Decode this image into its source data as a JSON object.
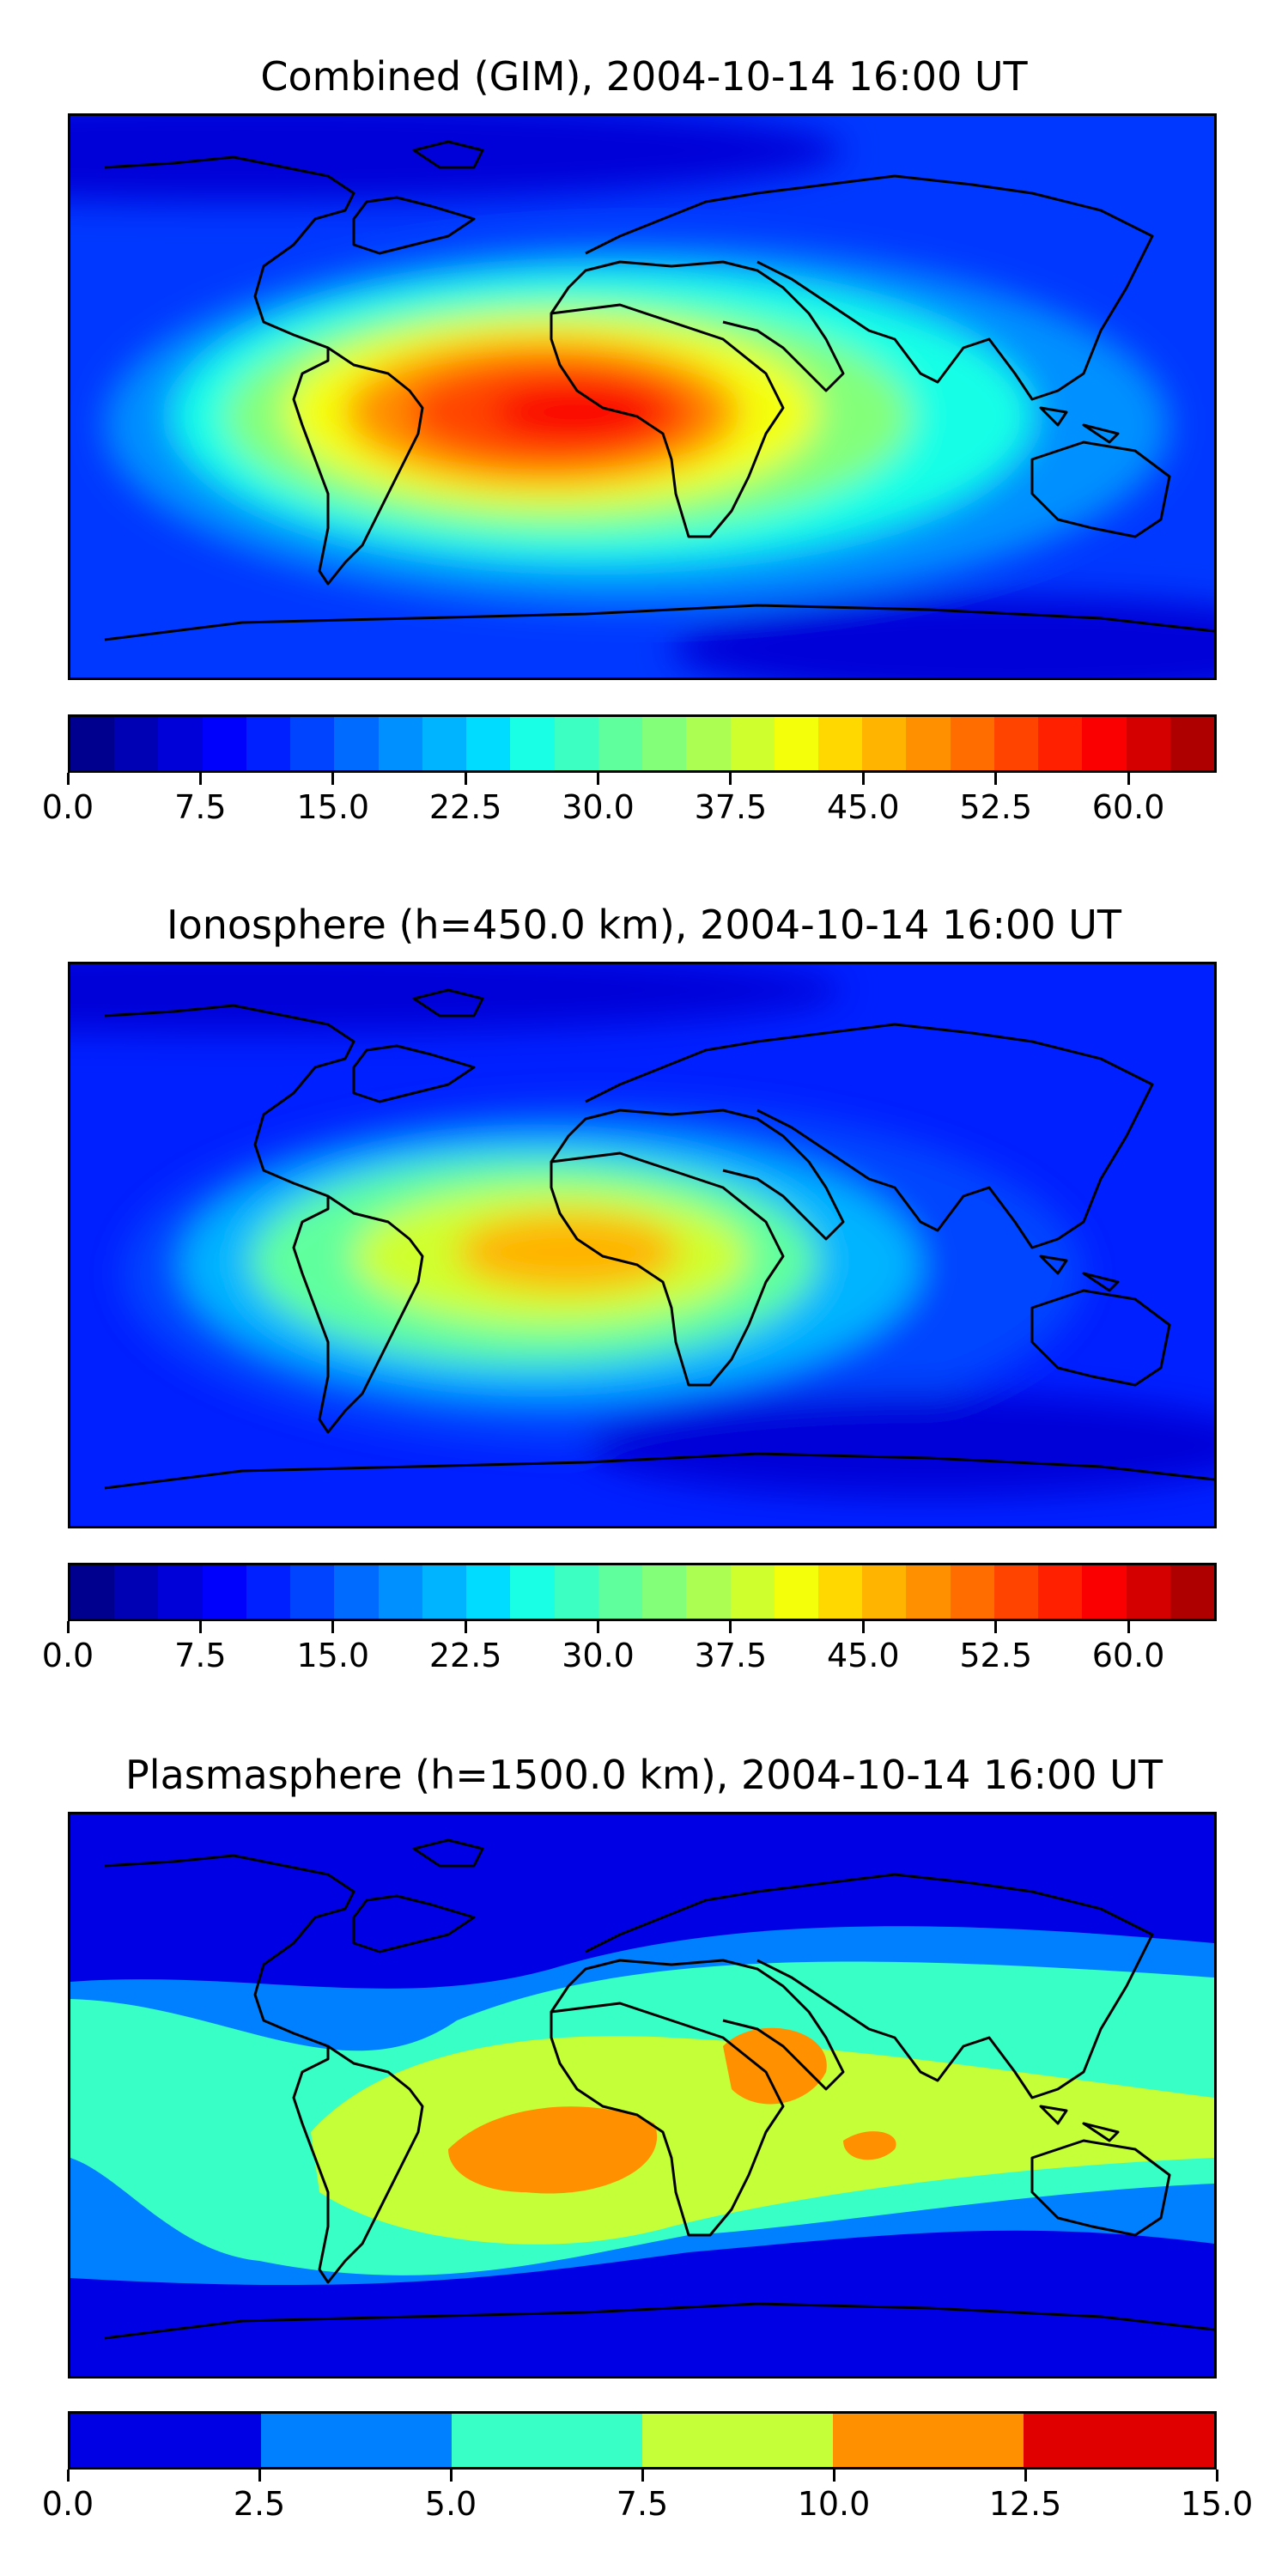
{
  "chart_data": [
    {
      "type": "heatmap",
      "title": "Combined (GIM), 2004-10-14 16:00 UT",
      "colorbar": {
        "min": 0.0,
        "max": 65.0,
        "step": 2.5,
        "ticks": [
          "0.0",
          "7.5",
          "15.0",
          "22.5",
          "30.0",
          "37.5",
          "45.0",
          "52.5",
          "60.0"
        ],
        "tick_values": [
          0,
          7.5,
          15,
          22.5,
          30,
          37.5,
          45,
          52.5,
          60
        ]
      },
      "max_region": "equatorial Atlantic / South America – West Africa, peak ≈ 60",
      "xlabel": "",
      "ylabel": ""
    },
    {
      "type": "heatmap",
      "title": "Ionosphere  (h=450.0 km), 2004-10-14 16:00 UT",
      "colorbar": {
        "min": 0.0,
        "max": 65.0,
        "step": 2.5,
        "ticks": [
          "0.0",
          "7.5",
          "15.0",
          "22.5",
          "30.0",
          "37.5",
          "45.0",
          "52.5",
          "60.0"
        ],
        "tick_values": [
          0,
          7.5,
          15,
          22.5,
          30,
          37.5,
          45,
          52.5,
          60
        ]
      },
      "max_region": "South America – Gulf of Guinea, peak ≈ 45",
      "xlabel": "",
      "ylabel": ""
    },
    {
      "type": "heatmap",
      "title": "Plasmasphere (h=1500.0 km), 2004-10-14 16:00 UT",
      "colorbar": {
        "min": 0.0,
        "max": 15.0,
        "step": 2.5,
        "ticks": [
          "0.0",
          "2.5",
          "5.0",
          "7.5",
          "10.0",
          "12.5",
          "15.0"
        ],
        "tick_values": [
          0,
          2.5,
          5,
          7.5,
          10,
          12.5,
          15
        ]
      },
      "max_region": "South Atlantic / East Africa, peak ≈ 10–12.5",
      "xlabel": "",
      "ylabel": ""
    }
  ],
  "colors": {
    "jet_26": [
      "#00008f",
      "#0000b4",
      "#0000d8",
      "#0000fd",
      "#0020ff",
      "#0044ff",
      "#006cff",
      "#0090ff",
      "#00b4ff",
      "#00dcff",
      "#18ffe6",
      "#3cffc2",
      "#60ff9e",
      "#84ff7a",
      "#acff52",
      "#d0ff2e",
      "#f4ff0a",
      "#ffd800",
      "#ffb400",
      "#ff9000",
      "#ff6c00",
      "#ff4400",
      "#ff2000",
      "#fa0000",
      "#d40000",
      "#af0000"
    ],
    "jet_6": [
      "#0000e5",
      "#0080ff",
      "#38ffc5",
      "#c5ff38",
      "#ff9000",
      "#e00000"
    ],
    "coastline": "#000000"
  }
}
